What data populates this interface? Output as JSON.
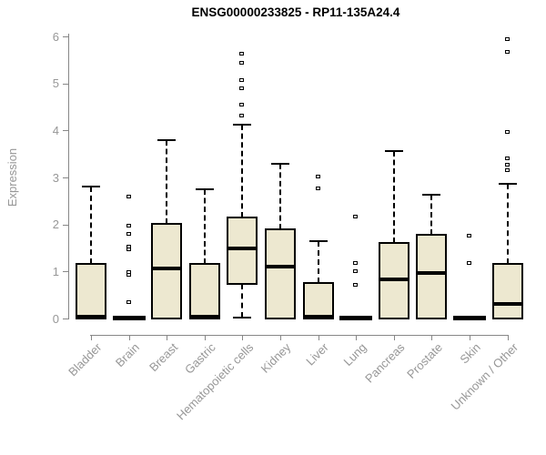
{
  "title": "ENSG00000233825 - RP11-135A24.4",
  "ylabel": "Expression",
  "colors": {
    "box_fill": "#EDE8D0",
    "box_border": "#000000",
    "median": "#000000",
    "axis": "#878787",
    "tick_label": "#979797",
    "title": "#000000"
  },
  "chart_data": {
    "type": "boxplot",
    "title": "ENSG00000233825 - RP11-135A24.4",
    "xlabel": "",
    "ylabel": "Expression",
    "ylim": [
      0,
      6
    ],
    "yticks": [
      0,
      1,
      2,
      3,
      4,
      5,
      6
    ],
    "grid": false,
    "legend": "none",
    "categories": [
      "Bladder",
      "Brain",
      "Breast",
      "Gastric",
      "Hematopoietic cells",
      "Kidney",
      "Liver",
      "Lung",
      "Pancreas",
      "Prostate",
      "Skin",
      "Unknown / Other"
    ],
    "boxes": [
      {
        "label": "Bladder",
        "whisker_low": 0,
        "q1": 0,
        "median": 0.04,
        "q3": 1.16,
        "whisker_high": 2.8,
        "outliers": []
      },
      {
        "label": "Brain",
        "whisker_low": 0,
        "q1": 0,
        "median": 0.02,
        "q3": 0,
        "whisker_high": 0,
        "outliers": [
          2.59,
          1.98,
          1.8,
          1.53,
          1.47,
          0.98,
          0.92,
          0.35
        ]
      },
      {
        "label": "Breast",
        "whisker_low": 0,
        "q1": 0,
        "median": 1.07,
        "q3": 2.01,
        "whisker_high": 3.8,
        "outliers": []
      },
      {
        "label": "Gastric",
        "whisker_low": 0,
        "q1": 0,
        "median": 0.04,
        "q3": 1.16,
        "whisker_high": 2.74,
        "outliers": []
      },
      {
        "label": "Hematopoietic cells",
        "whisker_low": 0.01,
        "q1": 0.73,
        "median": 1.49,
        "q3": 2.15,
        "whisker_high": 4.13,
        "outliers": [
          5.64,
          5.44,
          5.07,
          4.9,
          4.55,
          4.31
        ]
      },
      {
        "label": "Kidney",
        "whisker_low": 0,
        "q1": 0,
        "median": 1.11,
        "q3": 1.9,
        "whisker_high": 3.29,
        "outliers": []
      },
      {
        "label": "Liver",
        "whisker_low": 0,
        "q1": 0,
        "median": 0.03,
        "q3": 0.76,
        "whisker_high": 1.64,
        "outliers": [
          3.01,
          2.77
        ]
      },
      {
        "label": "Lung",
        "whisker_low": 0,
        "q1": 0,
        "median": 0.02,
        "q3": 0,
        "whisker_high": 0,
        "outliers": [
          2.16,
          1.19,
          1.0,
          0.71
        ]
      },
      {
        "label": "Pancreas",
        "whisker_low": 0,
        "q1": 0,
        "median": 0.84,
        "q3": 1.61,
        "whisker_high": 3.56,
        "outliers": []
      },
      {
        "label": "Prostate",
        "whisker_low": 0,
        "q1": 0,
        "median": 0.97,
        "q3": 1.79,
        "whisker_high": 2.64,
        "outliers": []
      },
      {
        "label": "Skin",
        "whisker_low": 0,
        "q1": 0,
        "median": 0.02,
        "q3": 0,
        "whisker_high": 0,
        "outliers": [
          1.77,
          1.19
        ]
      },
      {
        "label": "Unknown / Other",
        "whisker_low": 0,
        "q1": 0,
        "median": 0.31,
        "q3": 1.16,
        "whisker_high": 2.87,
        "outliers": [
          5.95,
          5.67,
          3.97,
          3.4,
          3.28,
          3.16
        ]
      }
    ]
  }
}
